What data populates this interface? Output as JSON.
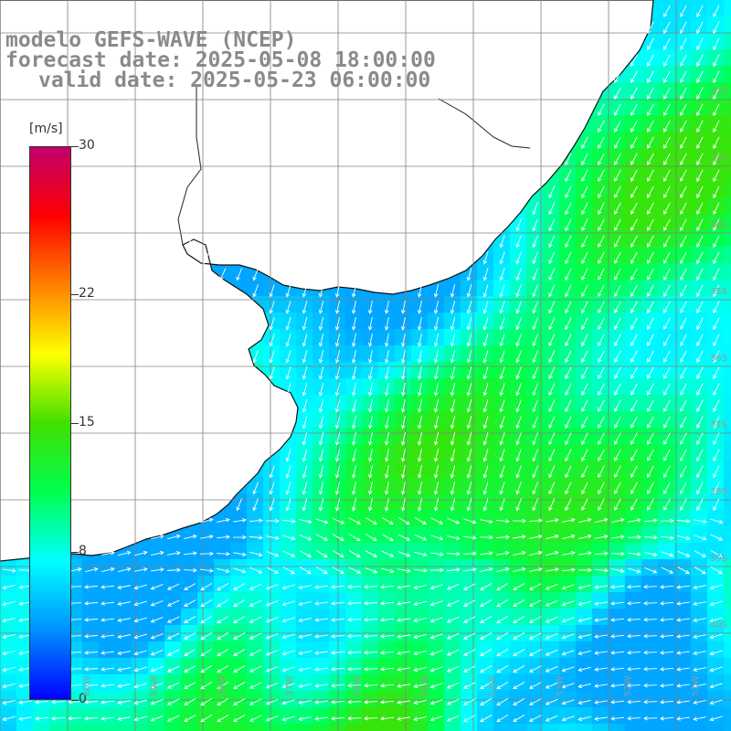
{
  "title": {
    "line1": "modelo GEFS-WAVE (NCEP)",
    "line2": "forecast date: 2025-05-08 18:00:00",
    "line3": "valid date: 2025-05-23 06:00:00"
  },
  "colorbar": {
    "unit": "[m/s]",
    "ticks": [
      "30",
      "22",
      "15",
      "8",
      "0"
    ],
    "tick_values": [
      30,
      22,
      15,
      8,
      0
    ],
    "colors": [
      "#0000ff",
      "#0090ff",
      "#00ffff",
      "#00ff50",
      "#40e000",
      "#ffff00",
      "#ff8000",
      "#ff0000",
      "#c0006a"
    ]
  },
  "map": {
    "lat_labels": [
      "32S",
      "33S",
      "34S",
      "35S",
      "36S",
      "37S",
      "38S",
      "39S",
      "40S"
    ],
    "lon_labels": [
      "60W",
      "59W",
      "58W",
      "57W",
      "56W",
      "55W",
      "54W",
      "53W",
      "52W",
      "51W"
    ],
    "land_color": "#ffffff",
    "grid_color": "#808080",
    "arrow_color": "#ffffff"
  }
}
